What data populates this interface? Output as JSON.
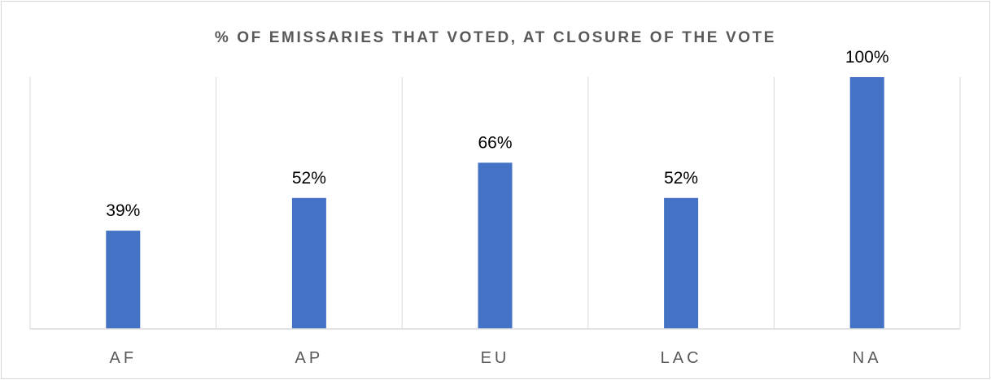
{
  "chart_data": {
    "type": "bar",
    "title": "% OF EMISSARIES THAT VOTED, AT CLOSURE OF THE VOTE",
    "categories": [
      "AF",
      "AP",
      "EU",
      "LAC",
      "NA"
    ],
    "values": [
      39,
      52,
      66,
      52,
      100
    ],
    "data_labels": [
      "39%",
      "52%",
      "66%",
      "52%",
      "100%"
    ],
    "xlabel": "",
    "ylabel": "",
    "ylim": [
      0,
      100
    ],
    "grid": "vertical-category-separators",
    "legend": "none",
    "bar_color": "#4472c4",
    "gridline_color": "#d9d9d9",
    "text_color": "#595959"
  }
}
